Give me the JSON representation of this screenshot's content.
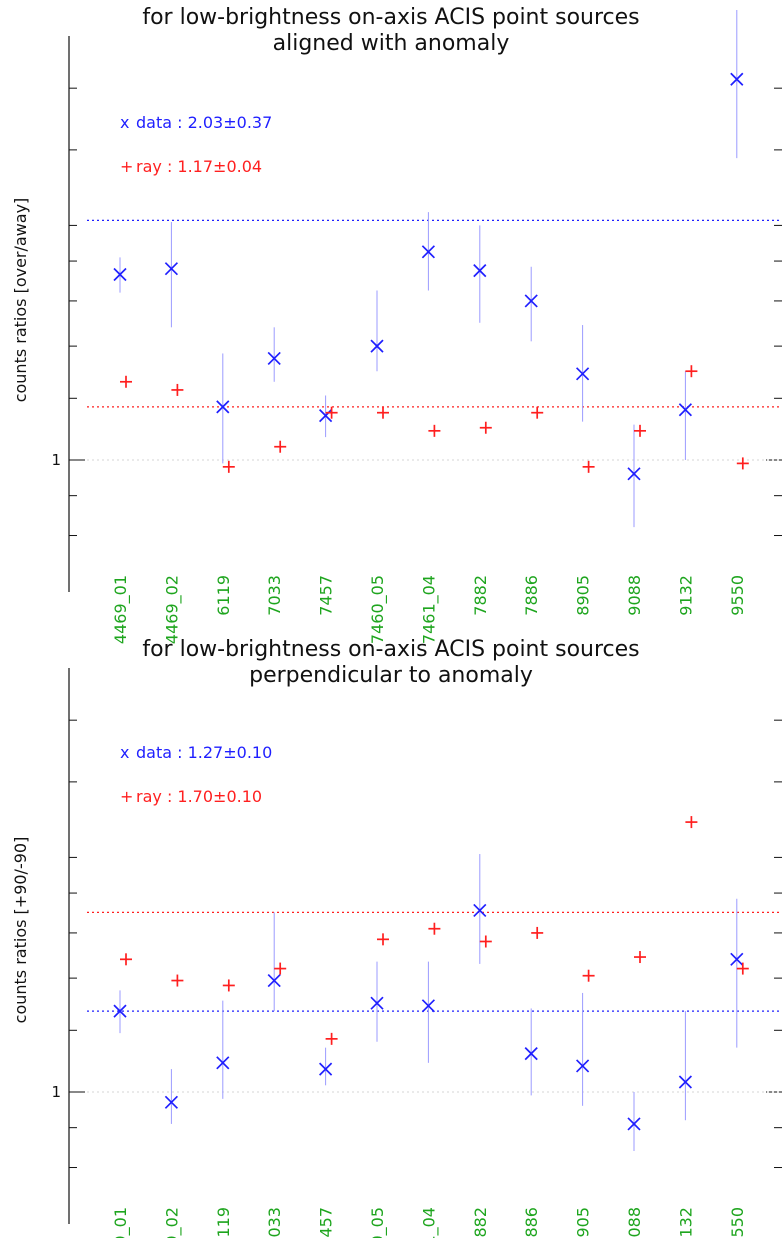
{
  "chart_data": [
    {
      "type": "scatter",
      "title": "for low-brightness on-axis ACIS point sources",
      "subtitle": "aligned with anomaly",
      "xlabel": "",
      "ylabel": "counts ratios [over/away]",
      "y_scale": "log",
      "ylim": [
        0.8,
        3.5
      ],
      "y_tick_labels": [
        "1"
      ],
      "grid": false,
      "categories": [
        "4469_01",
        "4469_02",
        "6119",
        "7033",
        "7457",
        "7460_05",
        "7461_04",
        "7882",
        "7886",
        "8905",
        "9088",
        "9132",
        "9550"
      ],
      "series": [
        {
          "name": "data",
          "marker": "x",
          "color": "#1f1fff",
          "values": [
            1.73,
            1.76,
            1.17,
            1.35,
            1.14,
            1.4,
            1.85,
            1.75,
            1.6,
            1.29,
            0.96,
            1.16,
            3.08
          ],
          "err_low": [
            1.64,
            1.48,
            0.99,
            1.26,
            1.07,
            1.3,
            1.65,
            1.5,
            1.42,
            1.12,
            0.82,
            1.0,
            2.44
          ],
          "err_high": [
            1.82,
            2.02,
            1.37,
            1.48,
            1.21,
            1.65,
            2.08,
            2.0,
            1.77,
            1.49,
            1.11,
            1.3,
            3.78
          ]
        },
        {
          "name": "ray",
          "marker": "+",
          "color": "#ff1f1f",
          "values": [
            1.26,
            1.23,
            0.98,
            1.04,
            1.15,
            1.15,
            1.09,
            1.1,
            1.15,
            0.98,
            1.09,
            1.3,
            0.99
          ]
        }
      ],
      "reference_lines": [
        {
          "series": "data",
          "value": 2.03,
          "color": "#1f1fff"
        },
        {
          "series": "ray",
          "value": 1.17,
          "color": "#ff1f1f"
        },
        {
          "value": 1,
          "color": "#d6d6d6"
        }
      ],
      "legend": [
        {
          "symbol": "x",
          "text": "data : 2.03±0.37",
          "color": "#1f1fff"
        },
        {
          "symbol": "+",
          "text": "ray : 1.17±0.04",
          "color": "#ff1f1f"
        }
      ],
      "legend_position": "top-left"
    },
    {
      "type": "scatter",
      "title": "for low-brightness on-axis ACIS point sources",
      "subtitle": "perpendicular to anomaly",
      "xlabel": "",
      "ylabel": "counts ratios [+90/-90]",
      "y_scale": "log",
      "ylim": [
        0.8,
        3.5
      ],
      "y_tick_labels": [
        "1"
      ],
      "grid": false,
      "categories": [
        "4469_01",
        "4469_02",
        "6119",
        "7033",
        "7457",
        "7460_05",
        "7461_04",
        "7882",
        "7886",
        "8905",
        "9088",
        "9132",
        "9550"
      ],
      "series": [
        {
          "name": "data",
          "marker": "x",
          "color": "#1f1fff",
          "values": [
            1.27,
            0.97,
            1.09,
            1.39,
            1.07,
            1.3,
            1.29,
            1.71,
            1.12,
            1.08,
            0.91,
            1.03,
            1.48
          ],
          "err_low": [
            1.19,
            0.91,
            0.98,
            1.27,
            1.02,
            1.16,
            1.09,
            1.46,
            0.99,
            0.96,
            0.84,
            0.92,
            1.14
          ],
          "err_high": [
            1.35,
            1.07,
            1.31,
            1.7,
            1.14,
            1.47,
            1.47,
            2.02,
            1.28,
            1.34,
            1.0,
            1.27,
            1.77
          ]
        },
        {
          "name": "ray",
          "marker": "+",
          "color": "#ff1f1f",
          "values": [
            1.48,
            1.39,
            1.37,
            1.44,
            1.17,
            1.57,
            1.62,
            1.56,
            1.6,
            1.41,
            1.49,
            2.22,
            1.44
          ]
        }
      ],
      "reference_lines": [
        {
          "series": "data",
          "value": 1.27,
          "color": "#1f1fff"
        },
        {
          "series": "ray",
          "value": 1.7,
          "color": "#ff1f1f"
        },
        {
          "value": 1,
          "color": "#d6d6d6"
        }
      ],
      "legend": [
        {
          "symbol": "x",
          "text": "data : 1.27±0.10",
          "color": "#1f1fff"
        },
        {
          "symbol": "+",
          "text": "ray : 1.70±0.10",
          "color": "#ff1f1f"
        }
      ],
      "legend_position": "top-left"
    }
  ],
  "colors": {
    "data": "#1f1fff",
    "ray": "#ff1f1f",
    "category_labels": "#1ea51e",
    "axis": "#111111",
    "reference_one": "#d6d6d6"
  }
}
